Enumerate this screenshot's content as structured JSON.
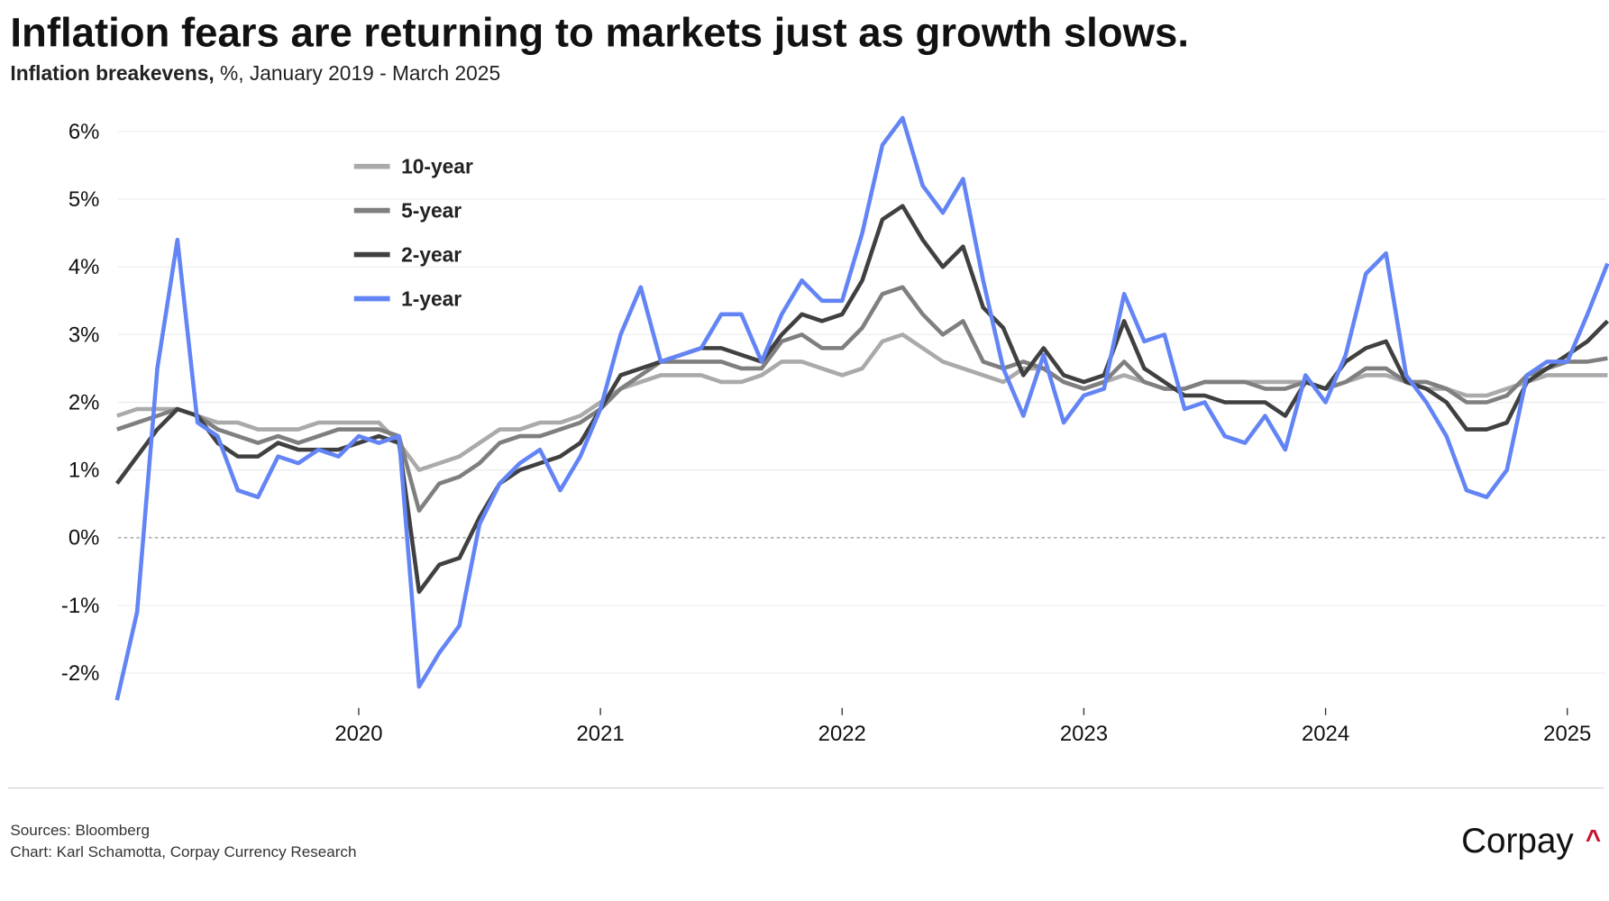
{
  "header": {
    "title": "Inflation fears are returning to markets just as growth slows.",
    "subtitle_bold": "Inflation breakevens,",
    "subtitle_rest": " %, January 2019 - March 2025"
  },
  "footer": {
    "sources": "Sources: Bloomberg",
    "credit": "Chart: Karl Schamotta, Corpay Currency Research",
    "logo_text": "Corpay",
    "logo_mark": "^",
    "logo_mark_color": "#c8102e"
  },
  "chart_data": {
    "type": "line",
    "title": "Inflation fears are returning to markets just as growth slows.",
    "subtitle": "Inflation breakevens, %, January 2019 - March 2025",
    "xlabel": "",
    "ylabel": "",
    "x_start": "2019-01",
    "x_frequency": "monthly",
    "x_ticks": [
      "2020",
      "2021",
      "2022",
      "2023",
      "2024",
      "2025"
    ],
    "y_ticks": [
      "6%",
      "5%",
      "4%",
      "3%",
      "2%",
      "1%",
      "0%",
      "-1%",
      "-2%"
    ],
    "ylim": [
      -2.5,
      6.3
    ],
    "grid": true,
    "zero_line": "dotted",
    "legend_position": "top-left",
    "series": [
      {
        "name": "10-year",
        "color": "#aaaaaa",
        "values": [
          1.8,
          1.9,
          1.9,
          1.9,
          1.8,
          1.7,
          1.7,
          1.6,
          1.6,
          1.6,
          1.7,
          1.7,
          1.7,
          1.7,
          1.4,
          1.0,
          1.1,
          1.2,
          1.4,
          1.6,
          1.6,
          1.7,
          1.7,
          1.8,
          2.0,
          2.2,
          2.3,
          2.4,
          2.4,
          2.4,
          2.3,
          2.3,
          2.4,
          2.6,
          2.6,
          2.5,
          2.4,
          2.5,
          2.9,
          3.0,
          2.8,
          2.6,
          2.5,
          2.4,
          2.3,
          2.5,
          2.5,
          2.3,
          2.2,
          2.3,
          2.4,
          2.3,
          2.2,
          2.2,
          2.3,
          2.3,
          2.3,
          2.3,
          2.3,
          2.3,
          2.2,
          2.3,
          2.4,
          2.4,
          2.3,
          2.2,
          2.2,
          2.1,
          2.1,
          2.2,
          2.3,
          2.4,
          2.4,
          2.4,
          2.4
        ]
      },
      {
        "name": "5-year",
        "color": "#7f7f7f",
        "values": [
          1.6,
          1.7,
          1.8,
          1.9,
          1.8,
          1.6,
          1.5,
          1.4,
          1.5,
          1.4,
          1.5,
          1.6,
          1.6,
          1.6,
          1.5,
          0.4,
          0.8,
          0.9,
          1.1,
          1.4,
          1.5,
          1.5,
          1.6,
          1.7,
          1.9,
          2.2,
          2.4,
          2.6,
          2.6,
          2.6,
          2.6,
          2.5,
          2.5,
          2.9,
          3.0,
          2.8,
          2.8,
          3.1,
          3.6,
          3.7,
          3.3,
          3.0,
          3.2,
          2.6,
          2.5,
          2.6,
          2.5,
          2.3,
          2.2,
          2.3,
          2.6,
          2.3,
          2.2,
          2.2,
          2.3,
          2.3,
          2.3,
          2.2,
          2.2,
          2.3,
          2.2,
          2.3,
          2.5,
          2.5,
          2.3,
          2.3,
          2.2,
          2.0,
          2.0,
          2.1,
          2.4,
          2.5,
          2.6,
          2.6,
          2.65
        ]
      },
      {
        "name": "2-year",
        "color": "#404040",
        "values": [
          0.8,
          1.2,
          1.6,
          1.9,
          1.8,
          1.4,
          1.2,
          1.2,
          1.4,
          1.3,
          1.3,
          1.3,
          1.4,
          1.5,
          1.4,
          -0.8,
          -0.4,
          -0.3,
          0.3,
          0.8,
          1.0,
          1.1,
          1.2,
          1.4,
          1.9,
          2.4,
          2.5,
          2.6,
          2.7,
          2.8,
          2.8,
          2.7,
          2.6,
          3.0,
          3.3,
          3.2,
          3.3,
          3.8,
          4.7,
          4.9,
          4.4,
          4.0,
          4.3,
          3.4,
          3.1,
          2.4,
          2.8,
          2.4,
          2.3,
          2.4,
          3.2,
          2.5,
          2.3,
          2.1,
          2.1,
          2.0,
          2.0,
          2.0,
          1.8,
          2.3,
          2.2,
          2.6,
          2.8,
          2.9,
          2.3,
          2.2,
          2.0,
          1.6,
          1.6,
          1.7,
          2.3,
          2.5,
          2.7,
          2.9,
          3.2
        ]
      },
      {
        "name": "1-year",
        "color": "#6384f5",
        "values": [
          -2.4,
          -1.1,
          2.5,
          4.4,
          1.7,
          1.5,
          0.7,
          0.6,
          1.2,
          1.1,
          1.3,
          1.2,
          1.5,
          1.4,
          1.5,
          -2.2,
          -1.7,
          -1.3,
          0.2,
          0.8,
          1.1,
          1.3,
          0.7,
          1.2,
          1.9,
          3.0,
          3.7,
          2.6,
          2.7,
          2.8,
          3.3,
          3.3,
          2.6,
          3.3,
          3.8,
          3.5,
          3.5,
          4.5,
          5.8,
          6.2,
          5.2,
          4.8,
          5.3,
          3.8,
          2.5,
          1.8,
          2.7,
          1.7,
          2.1,
          2.2,
          3.6,
          2.9,
          3.0,
          1.9,
          2.0,
          1.5,
          1.4,
          1.8,
          1.3,
          2.4,
          2.0,
          2.7,
          3.9,
          4.2,
          2.4,
          2.0,
          1.5,
          0.7,
          0.6,
          1.0,
          2.4,
          2.6,
          2.6,
          3.3,
          4.05
        ]
      }
    ]
  }
}
